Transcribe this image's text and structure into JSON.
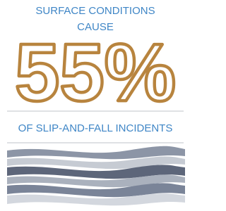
{
  "header": {
    "line1": "SURFACE CONDITIONS",
    "line2": "CAUSE"
  },
  "statistic": "55%",
  "footer": "OF SLIP-AND-FALL INCIDENTS"
}
